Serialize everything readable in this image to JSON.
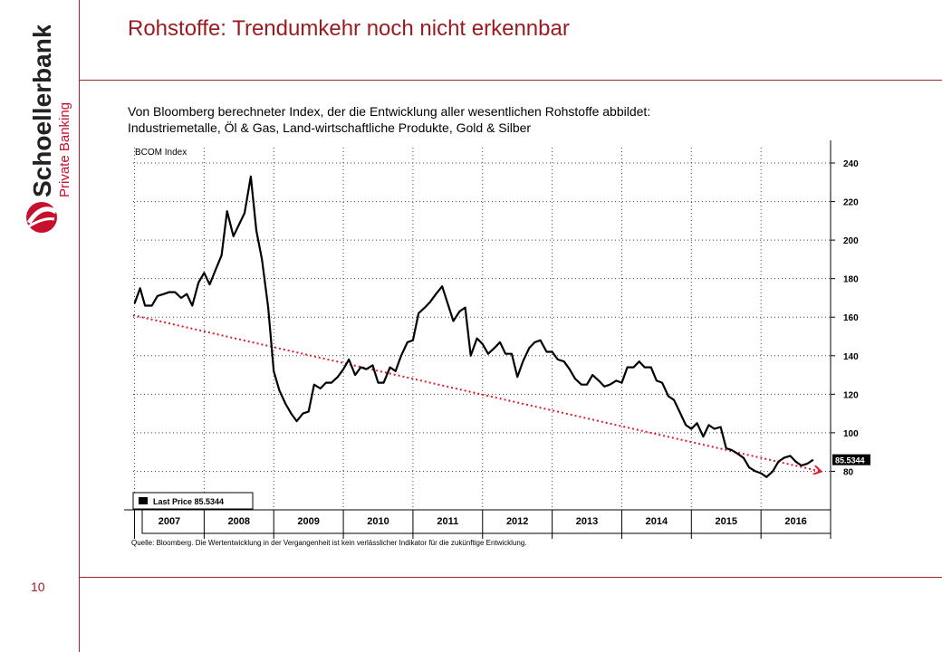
{
  "slide": {
    "title": "Rohstoffe: Trendumkehr noch nicht erkennbar",
    "subtitle_line1": "Von Bloomberg berechneter Index, der die Entwicklung aller wesentlichen Rohstoffe abbildet:",
    "subtitle_line2": "Industriemetalle, Öl & Gas, Land-wirtschaftliche Produkte, Gold & Silber",
    "page_number": "10",
    "source": "Quelle: Bloomberg. Die Wertentwicklung in der Vergangenheit ist kein verlässlicher Indikator für die zukünftige Entwicklung.",
    "logo_text": "Schoellerbank",
    "logo_subtext": "Private Banking",
    "accent_color": "#9a1b1f"
  },
  "chart_data": {
    "type": "line",
    "title": "BCOM Index",
    "legend_label": "Last Price 85.5344",
    "last_value_label": "85.5344",
    "x_tick_labels": [
      "2007",
      "2008",
      "2009",
      "2010",
      "2011",
      "2012",
      "2013",
      "2014",
      "2015",
      "2016"
    ],
    "y_tick_labels": [
      "80",
      "100",
      "120",
      "140",
      "160",
      "180",
      "200",
      "220",
      "240"
    ],
    "ylim": [
      60,
      248
    ],
    "xlim": [
      2006.98,
      2017.0
    ],
    "grid": true,
    "legend_position": "bottom-left",
    "series": [
      {
        "name": "Last Price",
        "color": "#000000",
        "x": [
          2007.0,
          2007.08,
          2007.15,
          2007.25,
          2007.33,
          2007.42,
          2007.5,
          2007.58,
          2007.67,
          2007.75,
          2007.83,
          2007.92,
          2008.0,
          2008.08,
          2008.17,
          2008.25,
          2008.33,
          2008.42,
          2008.5,
          2008.58,
          2008.67,
          2008.75,
          2008.83,
          2008.92,
          2009.0,
          2009.08,
          2009.17,
          2009.25,
          2009.33,
          2009.42,
          2009.5,
          2009.58,
          2009.67,
          2009.75,
          2009.83,
          2009.92,
          2010.0,
          2010.08,
          2010.17,
          2010.25,
          2010.33,
          2010.42,
          2010.5,
          2010.58,
          2010.67,
          2010.75,
          2010.83,
          2010.92,
          2011.0,
          2011.08,
          2011.17,
          2011.25,
          2011.33,
          2011.42,
          2011.5,
          2011.58,
          2011.67,
          2011.75,
          2011.83,
          2011.92,
          2012.0,
          2012.08,
          2012.17,
          2012.25,
          2012.33,
          2012.42,
          2012.5,
          2012.58,
          2012.67,
          2012.75,
          2012.83,
          2012.92,
          2013.0,
          2013.08,
          2013.17,
          2013.25,
          2013.33,
          2013.42,
          2013.5,
          2013.58,
          2013.67,
          2013.75,
          2013.83,
          2013.92,
          2014.0,
          2014.08,
          2014.17,
          2014.25,
          2014.33,
          2014.42,
          2014.5,
          2014.58,
          2014.67,
          2014.75,
          2014.83,
          2014.92,
          2015.0,
          2015.08,
          2015.17,
          2015.25,
          2015.33,
          2015.42,
          2015.5,
          2015.58,
          2015.67,
          2015.75,
          2015.83,
          2015.92,
          2016.0,
          2016.08,
          2016.17,
          2016.25,
          2016.33,
          2016.42,
          2016.5,
          2016.58,
          2016.67,
          2016.75
        ],
        "values": [
          167,
          175,
          166,
          166,
          171,
          172,
          173,
          173,
          170,
          172,
          166,
          178,
          183,
          177,
          185,
          192,
          215,
          202,
          208,
          214,
          233,
          205,
          190,
          165,
          132,
          122,
          115,
          110,
          106,
          110,
          111,
          125,
          123,
          126,
          126,
          129,
          133,
          138,
          130,
          134,
          133,
          135,
          126,
          126,
          134,
          132,
          140,
          147,
          148,
          162,
          165,
          168,
          172,
          176,
          167,
          158,
          163,
          165,
          140,
          149,
          146,
          141,
          144,
          147,
          141,
          141,
          129,
          137,
          144,
          147,
          148,
          142,
          142,
          138,
          137,
          133,
          128,
          125,
          125,
          130,
          127,
          124,
          125,
          127,
          126,
          134,
          134,
          137,
          134,
          134,
          127,
          126,
          119,
          117,
          111,
          104,
          102,
          105,
          98,
          104,
          102,
          103,
          92,
          91,
          89,
          87,
          82,
          80,
          79,
          77,
          80,
          85,
          87,
          88,
          85,
          83,
          84,
          86
        ]
      }
    ],
    "trendline": {
      "name": "Trend",
      "color": "#e01b2b",
      "style": "dotted-arrow",
      "x": [
        2006.98,
        2016.85
      ],
      "values": [
        161,
        80
      ]
    }
  }
}
